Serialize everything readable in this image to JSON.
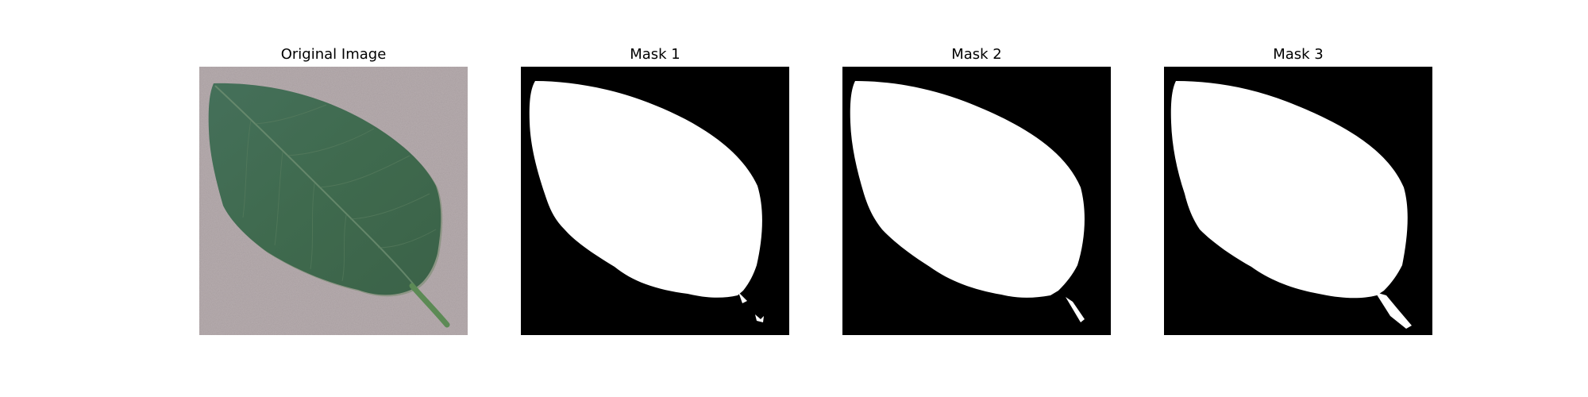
{
  "figure": {
    "panels": [
      {
        "title": "Original Image",
        "kind": "photo",
        "subject": "leaf"
      },
      {
        "title": "Mask 1",
        "kind": "mask"
      },
      {
        "title": "Mask 2",
        "kind": "mask"
      },
      {
        "title": "Mask 3",
        "kind": "mask"
      }
    ]
  },
  "colors": {
    "background": "#ffffff",
    "mask_background": "#000000",
    "mask_foreground": "#ffffff",
    "leaf_green": "#416a4d",
    "paper_gray": "#b7adaf"
  }
}
